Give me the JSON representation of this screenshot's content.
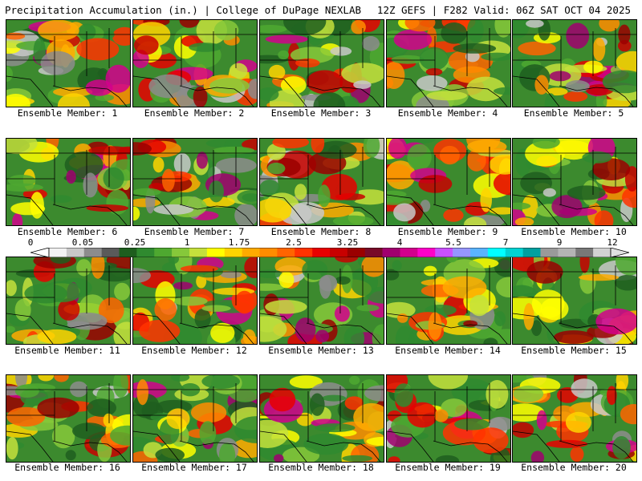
{
  "header": {
    "left": "Precipitation Accumulation (in.) | College of DuPage NEXLAB",
    "right": "12Z GEFS | F282 Valid: 06Z SAT OCT 04 2025"
  },
  "members": [
    {
      "label": "Ensemble Member: 1"
    },
    {
      "label": "Ensemble Member: 2"
    },
    {
      "label": "Ensemble Member: 3"
    },
    {
      "label": "Ensemble Member: 4"
    },
    {
      "label": "Ensemble Member: 5"
    },
    {
      "label": "Ensemble Member: 6"
    },
    {
      "label": "Ensemble Member: 7"
    },
    {
      "label": "Ensemble Member: 8"
    },
    {
      "label": "Ensemble Member: 9"
    },
    {
      "label": "Ensemble Member: 10"
    },
    {
      "label": "Ensemble Member: 11"
    },
    {
      "label": "Ensemble Member: 12"
    },
    {
      "label": "Ensemble Member: 13"
    },
    {
      "label": "Ensemble Member: 14"
    },
    {
      "label": "Ensemble Member: 15"
    },
    {
      "label": "Ensemble Member: 16"
    },
    {
      "label": "Ensemble Member: 17"
    },
    {
      "label": "Ensemble Member: 18"
    },
    {
      "label": "Ensemble Member: 19"
    },
    {
      "label": "Ensemble Member: 20"
    }
  ],
  "colorbar": {
    "colors": [
      "#f2f2f2",
      "#c8c8c8",
      "#8c8c8c",
      "#5a5a5a",
      "#1e5e1e",
      "#2f8a2f",
      "#4ea830",
      "#86c83a",
      "#c4e03c",
      "#ffff00",
      "#ffd400",
      "#ffaa00",
      "#ff8c00",
      "#ff6400",
      "#ff3200",
      "#e80000",
      "#c80000",
      "#9a0000",
      "#780a28",
      "#a0006e",
      "#d2008c",
      "#ff00c8",
      "#c850ff",
      "#9696ff",
      "#5ab4ff",
      "#00ffff",
      "#00d2d2",
      "#00a0a0",
      "#9a9a9a",
      "#b4b4b4",
      "#787878",
      "#d2d2d2"
    ],
    "labels": [
      "0",
      "0.05",
      "0.25",
      "1",
      "1.75",
      "2.5",
      "3.25",
      "4",
      "5.5",
      "7",
      "9",
      "12"
    ]
  }
}
